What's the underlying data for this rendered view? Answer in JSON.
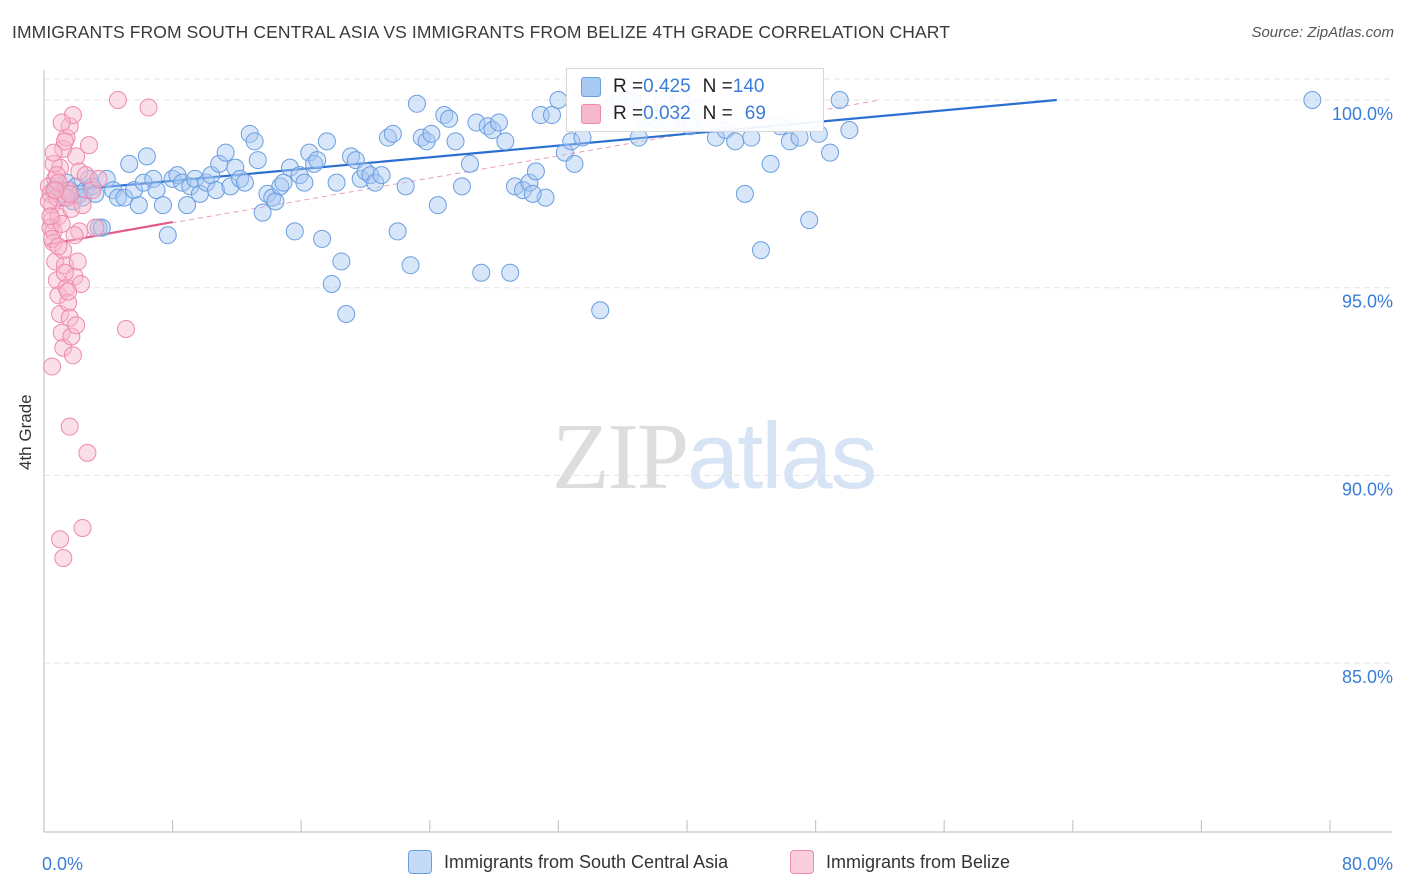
{
  "header": {
    "title": "IMMIGRANTS FROM SOUTH CENTRAL ASIA VS IMMIGRANTS FROM BELIZE 4TH GRADE CORRELATION CHART",
    "source": "Source: ZipAtlas.com"
  },
  "watermark": {
    "zip": "ZIP",
    "atlas": "atlas"
  },
  "legend_top": {
    "rows": [
      {
        "r_label": "R = ",
        "r_value": "0.425",
        "n_label": "N = ",
        "n_value": "140"
      },
      {
        "r_label": "R = ",
        "r_value": "0.032",
        "n_label": "N = ",
        "n_value": "69"
      }
    ]
  },
  "colors": {
    "blue_fill": "#a9c8f2",
    "blue_stroke": "#6a9ee0",
    "blue_line": "#2a6fd1",
    "pink_fill": "#f6b8cb",
    "pink_stroke": "#ee8aaa",
    "pink_line": "#e25b8b",
    "tick_label": "#3b7dd8",
    "grid": "#e4e4e4"
  },
  "chart_data": {
    "type": "scatter",
    "title": "IMMIGRANTS FROM SOUTH CENTRAL ASIA VS IMMIGRANTS FROM BELIZE 4TH GRADE CORRELATION CHART",
    "xlabel": "",
    "ylabel": "4th Grade",
    "xlim": [
      0,
      80
    ],
    "ylim": [
      80.5,
      100.8
    ],
    "x_tick_labels": [
      "0.0%",
      "80.0%"
    ],
    "y_ticks": [
      100,
      95,
      90,
      85
    ],
    "y_tick_labels": [
      "100.0%",
      "95.0%",
      "90.0%",
      "85.0%"
    ],
    "grid": true,
    "legend_position": "bottom",
    "series": [
      {
        "name": "Immigrants from South Central Asia",
        "color": "blue",
        "R": 0.425,
        "N": 140,
        "trend": {
          "x": [
            0.4,
            63
          ],
          "y": [
            97.55,
            100.0
          ]
        },
        "points": [
          [
            0.6,
            97.6
          ],
          [
            0.8,
            97.7
          ],
          [
            1.0,
            97.5
          ],
          [
            1.2,
            97.4
          ],
          [
            1.4,
            97.8
          ],
          [
            1.6,
            97.6
          ],
          [
            1.8,
            97.3
          ],
          [
            2.0,
            97.7
          ],
          [
            2.2,
            97.5
          ],
          [
            2.4,
            97.4
          ],
          [
            2.6,
            97.6
          ],
          [
            2.8,
            97.9
          ],
          [
            3.0,
            97.7
          ],
          [
            3.2,
            97.5
          ],
          [
            3.4,
            96.6
          ],
          [
            3.6,
            96.6
          ],
          [
            3.9,
            97.9
          ],
          [
            4.3,
            97.6
          ],
          [
            4.6,
            97.4
          ],
          [
            5.0,
            97.4
          ],
          [
            5.3,
            98.3
          ],
          [
            5.6,
            97.6
          ],
          [
            5.9,
            97.2
          ],
          [
            6.2,
            97.8
          ],
          [
            6.4,
            98.5
          ],
          [
            6.8,
            97.9
          ],
          [
            7.0,
            97.6
          ],
          [
            7.4,
            97.2
          ],
          [
            7.7,
            96.4
          ],
          [
            8.0,
            97.9
          ],
          [
            8.3,
            98.0
          ],
          [
            8.6,
            97.8
          ],
          [
            8.9,
            97.2
          ],
          [
            9.1,
            97.7
          ],
          [
            9.4,
            97.9
          ],
          [
            9.7,
            97.5
          ],
          [
            10.1,
            97.8
          ],
          [
            10.4,
            98.0
          ],
          [
            10.7,
            97.6
          ],
          [
            10.9,
            98.3
          ],
          [
            11.3,
            98.6
          ],
          [
            11.6,
            97.7
          ],
          [
            11.9,
            98.2
          ],
          [
            12.2,
            97.9
          ],
          [
            12.5,
            97.8
          ],
          [
            12.8,
            99.1
          ],
          [
            13.1,
            98.9
          ],
          [
            13.3,
            98.4
          ],
          [
            13.6,
            97.0
          ],
          [
            13.9,
            97.5
          ],
          [
            14.2,
            97.4
          ],
          [
            14.4,
            97.3
          ],
          [
            14.7,
            97.7
          ],
          [
            14.9,
            97.8
          ],
          [
            15.3,
            98.2
          ],
          [
            15.6,
            96.5
          ],
          [
            15.9,
            98.0
          ],
          [
            16.2,
            97.8
          ],
          [
            16.5,
            98.6
          ],
          [
            16.8,
            98.3
          ],
          [
            17.0,
            98.4
          ],
          [
            17.3,
            96.3
          ],
          [
            17.6,
            98.9
          ],
          [
            17.9,
            95.1
          ],
          [
            18.2,
            97.8
          ],
          [
            18.5,
            95.7
          ],
          [
            18.8,
            94.3
          ],
          [
            19.1,
            98.5
          ],
          [
            19.4,
            98.4
          ],
          [
            19.7,
            97.9
          ],
          [
            20.0,
            98.1
          ],
          [
            20.3,
            98.0
          ],
          [
            20.6,
            97.8
          ],
          [
            21.0,
            98.0
          ],
          [
            21.4,
            99.0
          ],
          [
            21.7,
            99.1
          ],
          [
            22.0,
            96.5
          ],
          [
            22.5,
            97.7
          ],
          [
            22.8,
            95.6
          ],
          [
            23.2,
            99.9
          ],
          [
            23.5,
            99.0
          ],
          [
            23.8,
            98.9
          ],
          [
            24.1,
            99.1
          ],
          [
            24.5,
            97.2
          ],
          [
            24.9,
            99.6
          ],
          [
            25.2,
            99.5
          ],
          [
            25.6,
            98.9
          ],
          [
            26.0,
            97.7
          ],
          [
            26.5,
            98.3
          ],
          [
            26.9,
            99.4
          ],
          [
            27.2,
            95.4
          ],
          [
            27.6,
            99.3
          ],
          [
            27.9,
            99.2
          ],
          [
            28.3,
            99.4
          ],
          [
            28.7,
            98.9
          ],
          [
            29.0,
            95.4
          ],
          [
            29.3,
            97.7
          ],
          [
            29.8,
            97.6
          ],
          [
            30.2,
            97.8
          ],
          [
            30.6,
            98.1
          ],
          [
            30.9,
            99.6
          ],
          [
            31.2,
            97.4
          ],
          [
            31.6,
            99.6
          ],
          [
            32.0,
            100.0
          ],
          [
            32.4,
            98.6
          ],
          [
            32.8,
            98.9
          ],
          [
            33.0,
            98.3
          ],
          [
            33.5,
            99.0
          ],
          [
            34.0,
            99.7
          ],
          [
            34.6,
            94.4
          ],
          [
            35.2,
            99.8
          ],
          [
            35.8,
            100.0
          ],
          [
            36.2,
            100.0
          ],
          [
            36.6,
            100.0
          ],
          [
            37.0,
            99.0
          ],
          [
            37.4,
            99.5
          ],
          [
            38.0,
            99.5
          ],
          [
            38.5,
            100.0
          ],
          [
            39.0,
            99.4
          ],
          [
            39.6,
            100.0
          ],
          [
            40.2,
            99.3
          ],
          [
            40.6,
            99.8
          ],
          [
            41.2,
            99.4
          ],
          [
            41.8,
            99.0
          ],
          [
            42.4,
            99.2
          ],
          [
            43.0,
            98.9
          ],
          [
            43.6,
            97.5
          ],
          [
            44.0,
            99.0
          ],
          [
            44.6,
            96.0
          ],
          [
            45.2,
            98.3
          ],
          [
            45.8,
            99.3
          ],
          [
            46.4,
            98.9
          ],
          [
            47.0,
            99.0
          ],
          [
            47.6,
            96.8
          ],
          [
            48.2,
            99.1
          ],
          [
            48.9,
            98.6
          ],
          [
            49.5,
            100.0
          ],
          [
            50.1,
            99.2
          ],
          [
            30.4,
            97.5
          ],
          [
            78.9,
            100.0
          ]
        ]
      },
      {
        "name": "Immigrants from Belize",
        "color": "pink",
        "R": 0.032,
        "N": 69,
        "trend": {
          "x": [
            0.2,
            8
          ],
          "y": [
            96.15,
            96.75
          ]
        },
        "trend_extended": {
          "x": [
            0.2,
            52
          ],
          "y": [
            96.15,
            100.0
          ]
        },
        "points": [
          [
            0.3,
            97.7
          ],
          [
            0.4,
            97.5
          ],
          [
            0.5,
            97.2
          ],
          [
            0.5,
            96.8
          ],
          [
            0.6,
            96.5
          ],
          [
            0.7,
            97.9
          ],
          [
            0.8,
            97.4
          ],
          [
            0.9,
            96.9
          ],
          [
            0.4,
            96.6
          ],
          [
            0.6,
            96.2
          ],
          [
            0.7,
            95.7
          ],
          [
            0.8,
            95.2
          ],
          [
            0.9,
            94.8
          ],
          [
            1.0,
            94.3
          ],
          [
            1.1,
            93.8
          ],
          [
            1.2,
            93.4
          ],
          [
            0.5,
            92.9
          ],
          [
            1.3,
            95.6
          ],
          [
            1.4,
            95.0
          ],
          [
            1.5,
            94.6
          ],
          [
            1.6,
            94.2
          ],
          [
            1.7,
            93.7
          ],
          [
            1.8,
            93.2
          ],
          [
            1.9,
            95.3
          ],
          [
            2.0,
            94.0
          ],
          [
            2.1,
            95.7
          ],
          [
            2.2,
            96.5
          ],
          [
            2.3,
            95.1
          ],
          [
            1.0,
            98.2
          ],
          [
            1.2,
            98.7
          ],
          [
            1.4,
            99.0
          ],
          [
            1.6,
            99.3
          ],
          [
            1.8,
            99.6
          ],
          [
            2.0,
            98.5
          ],
          [
            2.2,
            98.1
          ],
          [
            1.1,
            99.4
          ],
          [
            1.3,
            98.9
          ],
          [
            0.6,
            98.3
          ],
          [
            0.8,
            98.0
          ],
          [
            1.5,
            97.6
          ],
          [
            1.7,
            97.1
          ],
          [
            1.9,
            96.4
          ],
          [
            1.2,
            96.0
          ],
          [
            1.4,
            97.4
          ],
          [
            0.9,
            97.8
          ],
          [
            1.1,
            96.7
          ],
          [
            2.4,
            97.2
          ],
          [
            2.6,
            98.0
          ],
          [
            2.8,
            98.8
          ],
          [
            3.0,
            97.6
          ],
          [
            3.2,
            96.6
          ],
          [
            3.4,
            97.9
          ],
          [
            0.3,
            97.3
          ],
          [
            0.5,
            96.3
          ],
          [
            1.6,
            91.3
          ],
          [
            2.7,
            90.6
          ],
          [
            2.4,
            88.6
          ],
          [
            1.0,
            88.3
          ],
          [
            1.2,
            87.8
          ],
          [
            1.6,
            97.5
          ],
          [
            0.4,
            96.9
          ],
          [
            0.7,
            97.6
          ],
          [
            0.9,
            96.1
          ],
          [
            1.3,
            95.4
          ],
          [
            1.5,
            94.9
          ],
          [
            4.6,
            100.0
          ],
          [
            6.5,
            99.8
          ],
          [
            5.1,
            93.9
          ],
          [
            0.6,
            98.6
          ]
        ]
      }
    ]
  },
  "legend_bottom": {
    "series_a": "Immigrants from South Central Asia",
    "series_b": "Immigrants from Belize"
  }
}
